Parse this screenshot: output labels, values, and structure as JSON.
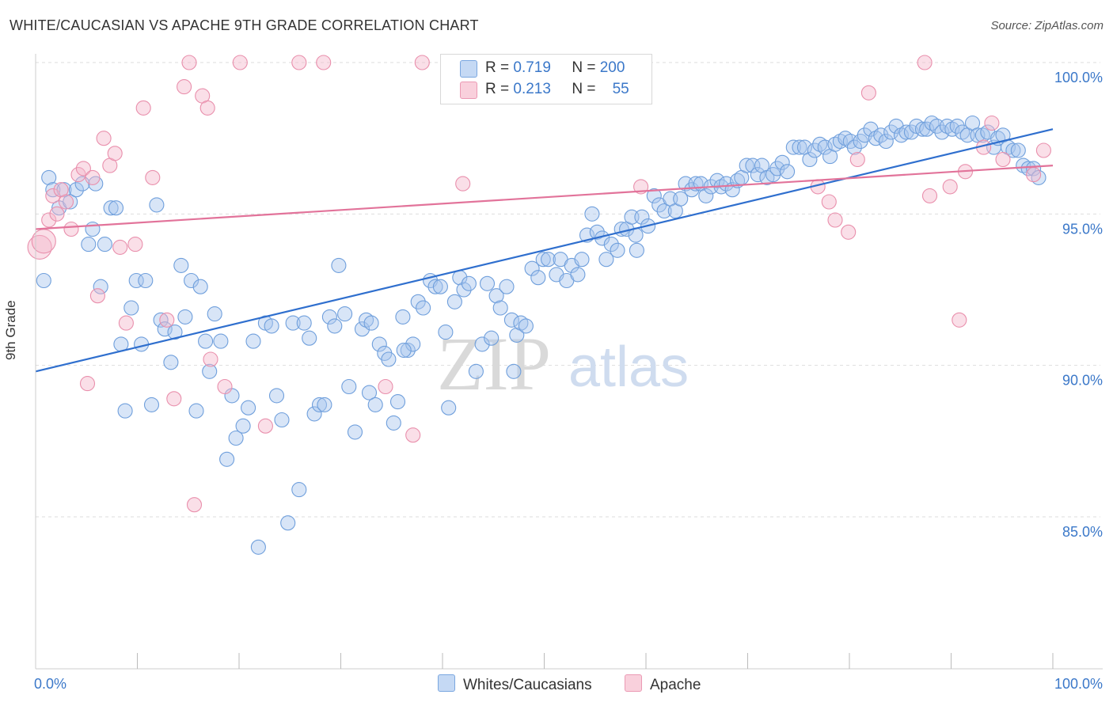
{
  "header": {
    "title": "WHITE/CAUCASIAN VS APACHE 9TH GRADE CORRELATION CHART",
    "source": "Source: ZipAtlas.com"
  },
  "watermark": {
    "zip": "ZIP",
    "atlas": "atlas"
  },
  "legend_stats": [
    {
      "r_label": "R =",
      "r_value": "0.719",
      "n_label": "N =",
      "n_value": "200",
      "color": "#a9c6ee"
    },
    {
      "r_label": "R =",
      "r_value": "0.213",
      "n_label": "N =",
      "n_value": "55",
      "color": "#f5b8cb"
    }
  ],
  "chart_data": {
    "type": "scatter",
    "title": "WHITE/CAUCASIAN VS APACHE 9TH GRADE CORRELATION CHART",
    "xlabel": "",
    "ylabel": "9th Grade",
    "xlim": [
      0,
      100
    ],
    "ylim": [
      80.5,
      100.5
    ],
    "x_ticks": [
      "0.0%",
      "100.0%"
    ],
    "y_ticks": [
      {
        "value": 85,
        "label": "85.0%"
      },
      {
        "value": 90,
        "label": "90.0%"
      },
      {
        "value": 95,
        "label": "95.0%"
      },
      {
        "value": 100,
        "label": "100.0%"
      }
    ],
    "grid": true,
    "legend_position": "bottom-center",
    "series": [
      {
        "name": "Whites/Caucasians",
        "color": "#a9c6ee",
        "stroke": "#6f9fdc",
        "trend": {
          "x": [
            0,
            100
          ],
          "y": [
            89.8,
            97.8
          ],
          "color": "#2f6fce"
        },
        "points": [
          [
            0.8,
            92.8
          ],
          [
            1.3,
            96.2
          ],
          [
            1.7,
            95.8
          ],
          [
            2.3,
            95.2
          ],
          [
            2.8,
            95.8
          ],
          [
            3.4,
            95.4
          ],
          [
            4.0,
            95.8
          ],
          [
            4.6,
            96.0
          ],
          [
            5.2,
            94.0
          ],
          [
            5.6,
            94.5
          ],
          [
            5.9,
            96.0
          ],
          [
            6.4,
            92.6
          ],
          [
            6.8,
            94.0
          ],
          [
            7.4,
            95.2
          ],
          [
            7.9,
            95.2
          ],
          [
            8.4,
            90.7
          ],
          [
            8.8,
            88.5
          ],
          [
            9.4,
            91.9
          ],
          [
            9.9,
            92.8
          ],
          [
            10.4,
            90.7
          ],
          [
            10.8,
            92.8
          ],
          [
            11.4,
            88.7
          ],
          [
            11.9,
            95.3
          ],
          [
            12.3,
            91.5
          ],
          [
            12.7,
            91.2
          ],
          [
            13.3,
            90.1
          ],
          [
            13.7,
            91.1
          ],
          [
            14.3,
            93.3
          ],
          [
            14.7,
            91.6
          ],
          [
            15.3,
            92.8
          ],
          [
            15.8,
            88.5
          ],
          [
            16.2,
            92.6
          ],
          [
            16.7,
            90.8
          ],
          [
            17.1,
            89.8
          ],
          [
            17.6,
            91.7
          ],
          [
            18.2,
            90.8
          ],
          [
            18.8,
            86.9
          ],
          [
            19.3,
            89.0
          ],
          [
            19.7,
            87.6
          ],
          [
            20.4,
            88.0
          ],
          [
            20.9,
            88.6
          ],
          [
            21.4,
            90.8
          ],
          [
            21.9,
            84.0
          ],
          [
            22.6,
            91.4
          ],
          [
            23.2,
            91.3
          ],
          [
            23.7,
            89.0
          ],
          [
            24.2,
            88.2
          ],
          [
            24.8,
            84.8
          ],
          [
            25.3,
            91.4
          ],
          [
            25.9,
            85.9
          ],
          [
            26.4,
            91.4
          ],
          [
            26.9,
            90.9
          ],
          [
            27.4,
            88.4
          ],
          [
            27.9,
            88.7
          ],
          [
            28.4,
            88.7
          ],
          [
            28.9,
            91.6
          ],
          [
            29.4,
            91.3
          ],
          [
            29.8,
            93.3
          ],
          [
            30.4,
            91.7
          ],
          [
            30.8,
            89.3
          ],
          [
            31.4,
            87.8
          ],
          [
            32.1,
            91.2
          ],
          [
            32.5,
            91.5
          ],
          [
            32.8,
            89.1
          ],
          [
            33.4,
            88.7
          ],
          [
            33.8,
            90.7
          ],
          [
            34.3,
            90.4
          ],
          [
            34.7,
            90.2
          ],
          [
            35.2,
            88.1
          ],
          [
            35.6,
            88.8
          ],
          [
            36.1,
            91.6
          ],
          [
            36.6,
            90.5
          ],
          [
            37.1,
            90.7
          ],
          [
            37.6,
            92.1
          ],
          [
            38.1,
            91.9
          ],
          [
            38.8,
            92.8
          ],
          [
            39.3,
            92.6
          ],
          [
            39.8,
            92.6
          ],
          [
            40.3,
            91.1
          ],
          [
            40.6,
            88.6
          ],
          [
            41.2,
            92.1
          ],
          [
            41.7,
            92.9
          ],
          [
            42.1,
            92.5
          ],
          [
            42.6,
            92.7
          ],
          [
            43.3,
            89.8
          ],
          [
            43.9,
            90.7
          ],
          [
            44.4,
            92.7
          ],
          [
            44.8,
            90.9
          ],
          [
            45.3,
            92.3
          ],
          [
            45.7,
            91.9
          ],
          [
            46.3,
            92.6
          ],
          [
            46.8,
            91.5
          ],
          [
            47.3,
            91.0
          ],
          [
            47.7,
            91.4
          ],
          [
            48.2,
            91.3
          ],
          [
            48.8,
            93.2
          ],
          [
            49.4,
            92.9
          ],
          [
            49.9,
            93.5
          ],
          [
            50.4,
            93.5
          ],
          [
            51.2,
            93.0
          ],
          [
            51.6,
            93.5
          ],
          [
            52.2,
            92.8
          ],
          [
            52.7,
            93.3
          ],
          [
            53.3,
            93.0
          ],
          [
            53.7,
            93.5
          ],
          [
            54.2,
            94.3
          ],
          [
            54.7,
            95.0
          ],
          [
            55.2,
            94.4
          ],
          [
            55.7,
            94.2
          ],
          [
            56.1,
            93.5
          ],
          [
            56.6,
            94.0
          ],
          [
            57.2,
            93.8
          ],
          [
            57.6,
            94.5
          ],
          [
            58.1,
            94.5
          ],
          [
            58.6,
            94.9
          ],
          [
            59.1,
            93.8
          ],
          [
            59.6,
            94.9
          ],
          [
            60.2,
            94.6
          ],
          [
            60.8,
            95.6
          ],
          [
            61.3,
            95.3
          ],
          [
            61.8,
            95.1
          ],
          [
            62.4,
            95.5
          ],
          [
            62.9,
            95.1
          ],
          [
            63.4,
            95.5
          ],
          [
            63.9,
            96.0
          ],
          [
            64.5,
            95.8
          ],
          [
            64.9,
            96.0
          ],
          [
            65.4,
            96.0
          ],
          [
            65.9,
            95.6
          ],
          [
            66.4,
            95.9
          ],
          [
            67.0,
            96.1
          ],
          [
            67.4,
            95.9
          ],
          [
            67.9,
            96.0
          ],
          [
            68.5,
            95.8
          ],
          [
            69.0,
            96.1
          ],
          [
            69.4,
            96.2
          ],
          [
            69.9,
            96.6
          ],
          [
            70.5,
            96.6
          ],
          [
            71.0,
            96.3
          ],
          [
            71.4,
            96.6
          ],
          [
            71.9,
            96.2
          ],
          [
            72.5,
            96.3
          ],
          [
            72.9,
            96.5
          ],
          [
            73.4,
            96.7
          ],
          [
            73.9,
            96.4
          ],
          [
            74.5,
            97.2
          ],
          [
            75.1,
            97.2
          ],
          [
            75.6,
            97.2
          ],
          [
            76.1,
            96.8
          ],
          [
            76.6,
            97.1
          ],
          [
            77.1,
            97.3
          ],
          [
            77.6,
            97.2
          ],
          [
            78.1,
            96.9
          ],
          [
            78.6,
            97.3
          ],
          [
            79.1,
            97.4
          ],
          [
            79.6,
            97.5
          ],
          [
            80.1,
            97.4
          ],
          [
            80.5,
            97.2
          ],
          [
            81.1,
            97.4
          ],
          [
            81.5,
            97.6
          ],
          [
            82.1,
            97.8
          ],
          [
            82.6,
            97.5
          ],
          [
            83.1,
            97.6
          ],
          [
            83.6,
            97.4
          ],
          [
            84.1,
            97.7
          ],
          [
            84.6,
            97.9
          ],
          [
            85.1,
            97.6
          ],
          [
            85.6,
            97.7
          ],
          [
            86.1,
            97.7
          ],
          [
            86.6,
            97.9
          ],
          [
            87.2,
            97.8
          ],
          [
            87.6,
            97.8
          ],
          [
            88.1,
            98.0
          ],
          [
            88.6,
            97.9
          ],
          [
            89.1,
            97.7
          ],
          [
            89.6,
            97.9
          ],
          [
            90.1,
            97.8
          ],
          [
            90.6,
            97.9
          ],
          [
            91.1,
            97.7
          ],
          [
            91.6,
            97.6
          ],
          [
            92.1,
            98.0
          ],
          [
            92.6,
            97.6
          ],
          [
            93.1,
            97.6
          ],
          [
            93.6,
            97.7
          ],
          [
            94.2,
            97.2
          ],
          [
            94.6,
            97.5
          ],
          [
            95.1,
            97.6
          ],
          [
            95.6,
            97.2
          ],
          [
            96.1,
            97.1
          ],
          [
            96.6,
            97.1
          ],
          [
            97.1,
            96.6
          ],
          [
            97.6,
            96.5
          ],
          [
            98.1,
            96.5
          ],
          [
            98.6,
            96.2
          ],
          [
            33.0,
            91.4
          ],
          [
            36.2,
            90.5
          ],
          [
            47.0,
            89.8
          ],
          [
            59.0,
            94.3
          ]
        ]
      },
      {
        "name": "Apache",
        "color": "#f5b8cb",
        "stroke": "#e98fac",
        "trend": {
          "x": [
            0,
            100
          ],
          "y": [
            94.5,
            96.6
          ],
          "color": "#e2739a"
        },
        "points": [
          [
            0.4,
            93.9
          ],
          [
            0.8,
            94.1
          ],
          [
            1.3,
            94.8
          ],
          [
            1.7,
            95.6
          ],
          [
            2.1,
            95.0
          ],
          [
            2.5,
            95.8
          ],
          [
            3.0,
            95.4
          ],
          [
            3.5,
            94.5
          ],
          [
            4.2,
            96.3
          ],
          [
            4.7,
            96.5
          ],
          [
            5.1,
            89.4
          ],
          [
            5.6,
            96.2
          ],
          [
            6.1,
            92.3
          ],
          [
            6.7,
            97.5
          ],
          [
            7.3,
            96.6
          ],
          [
            7.8,
            97.0
          ],
          [
            8.3,
            93.9
          ],
          [
            8.9,
            91.4
          ],
          [
            9.8,
            94.0
          ],
          [
            10.6,
            98.5
          ],
          [
            11.5,
            96.2
          ],
          [
            12.9,
            91.5
          ],
          [
            13.6,
            88.9
          ],
          [
            14.6,
            99.2
          ],
          [
            15.1,
            100.0
          ],
          [
            15.6,
            85.4
          ],
          [
            16.4,
            98.9
          ],
          [
            16.9,
            98.5
          ],
          [
            17.2,
            90.2
          ],
          [
            18.6,
            89.3
          ],
          [
            20.1,
            100.0
          ],
          [
            22.6,
            88.0
          ],
          [
            25.9,
            100.0
          ],
          [
            28.3,
            100.0
          ],
          [
            34.4,
            89.3
          ],
          [
            37.1,
            87.7
          ],
          [
            38.0,
            100.0
          ],
          [
            42.0,
            96.0
          ],
          [
            59.5,
            95.9
          ],
          [
            76.9,
            95.9
          ],
          [
            78.0,
            95.4
          ],
          [
            78.6,
            94.8
          ],
          [
            79.9,
            94.4
          ],
          [
            80.8,
            96.8
          ],
          [
            81.9,
            99.0
          ],
          [
            87.4,
            100.0
          ],
          [
            87.9,
            95.6
          ],
          [
            89.9,
            95.9
          ],
          [
            90.8,
            91.5
          ],
          [
            91.4,
            96.4
          ],
          [
            93.2,
            97.2
          ],
          [
            94.0,
            98.0
          ],
          [
            95.1,
            96.8
          ],
          [
            98.1,
            96.3
          ],
          [
            99.1,
            97.1
          ]
        ]
      }
    ]
  }
}
